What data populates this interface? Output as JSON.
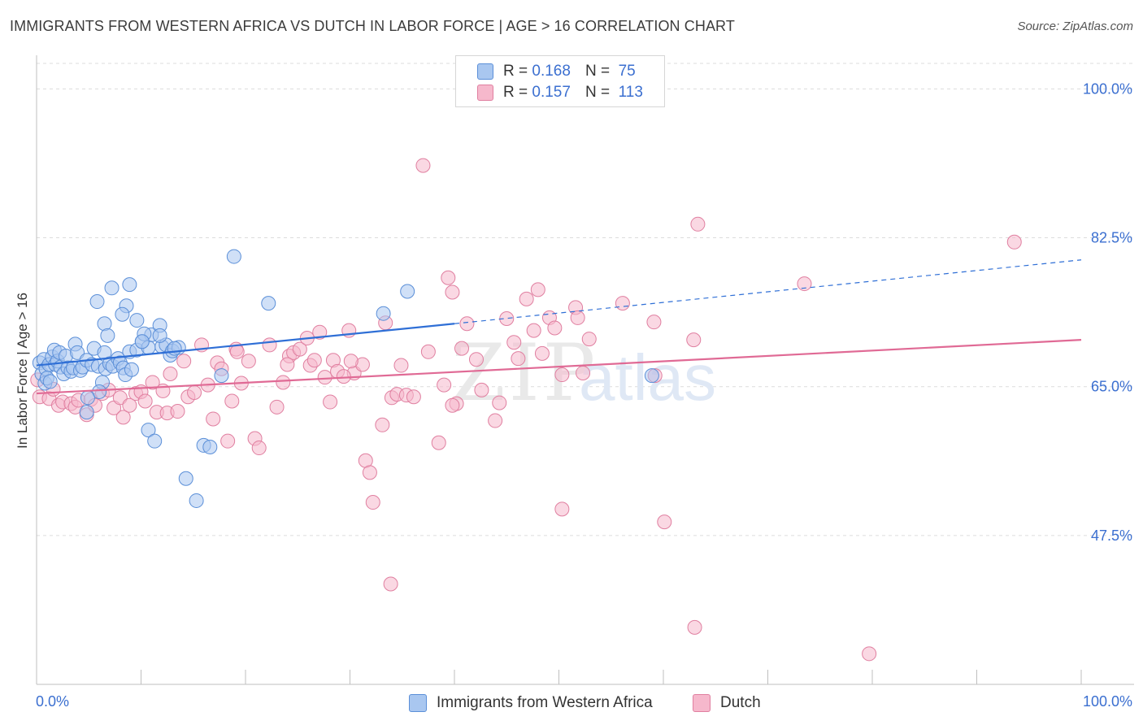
{
  "header": {
    "title": "IMMIGRANTS FROM WESTERN AFRICA VS DUTCH IN LABOR FORCE | AGE > 16 CORRELATION CHART",
    "source": "Source: ZipAtlas.com"
  },
  "legend": {
    "r_label": "R =",
    "n_label": "N =",
    "series": [
      {
        "name": "Immigrants from Western Africa",
        "r": "0.168",
        "n": "75",
        "color": "#a9c7f0",
        "edge": "#5b8fd8"
      },
      {
        "name": "Dutch",
        "r": "0.157",
        "n": "113",
        "color": "#f6b8cc",
        "edge": "#e07fa0"
      }
    ]
  },
  "watermark": {
    "zip": "ZIP",
    "atlas": "atlas"
  },
  "chart_data": {
    "type": "scatter",
    "title": "IMMIGRANTS FROM WESTERN AFRICA VS DUTCH IN LABOR FORCE | AGE > 16 CORRELATION CHART",
    "xlabel": "",
    "ylabel": "In Labor Force | Age > 16",
    "xlim": [
      0,
      100
    ],
    "ylim": [
      30,
      103
    ],
    "x_tick_labels": [
      "0.0%",
      "100.0%"
    ],
    "y_ticks": [
      47.5,
      65.0,
      82.5,
      100.0
    ],
    "y_tick_labels": [
      "47.5%",
      "65.0%",
      "82.5%",
      "100.0%"
    ],
    "grid": true,
    "trend_lines": [
      {
        "series": "Immigrants from Western Africa",
        "x0": 0,
        "y0": 67.5,
        "x1": 40,
        "y1": 72.4,
        "dashed_to_x": 100,
        "dashed_to_y": 79.9,
        "color": "#2f6fd6"
      },
      {
        "series": "Dutch",
        "x0": 0,
        "y0": 64.2,
        "x1": 100,
        "y1": 70.5,
        "color": "#e06a95"
      }
    ],
    "series": [
      {
        "name": "Immigrants from Western Africa",
        "color": "#a9c7f0",
        "edge": "#5b8fd8",
        "points": [
          [
            0.3,
            67.8
          ],
          [
            0.5,
            66.5
          ],
          [
            0.7,
            68.2
          ],
          [
            0.8,
            65.4
          ],
          [
            0.9,
            67.1
          ],
          [
            1.0,
            66.0
          ],
          [
            1.2,
            67.6
          ],
          [
            1.3,
            65.6
          ],
          [
            1.5,
            68.5
          ],
          [
            1.7,
            69.3
          ],
          [
            1.8,
            67.6
          ],
          [
            2.0,
            68.0
          ],
          [
            2.2,
            69.0
          ],
          [
            2.3,
            67.3
          ],
          [
            2.6,
            66.5
          ],
          [
            2.8,
            68.6
          ],
          [
            3.0,
            67.2
          ],
          [
            3.3,
            66.8
          ],
          [
            3.5,
            67.2
          ],
          [
            3.7,
            70.0
          ],
          [
            3.9,
            69.0
          ],
          [
            4.2,
            66.9
          ],
          [
            4.4,
            67.3
          ],
          [
            4.8,
            68.1
          ],
          [
            5.3,
            67.6
          ],
          [
            5.5,
            69.5
          ],
          [
            5.9,
            67.4
          ],
          [
            6.3,
            65.5
          ],
          [
            6.0,
            64.4
          ],
          [
            6.5,
            69.0
          ],
          [
            6.6,
            67.1
          ],
          [
            7.0,
            67.7
          ],
          [
            7.3,
            67.4
          ],
          [
            7.8,
            68.3
          ],
          [
            8.0,
            67.8
          ],
          [
            8.3,
            67.2
          ],
          [
            8.9,
            69.1
          ],
          [
            8.5,
            66.4
          ],
          [
            9.1,
            67.0
          ],
          [
            9.6,
            69.3
          ],
          [
            10.1,
            70.3
          ],
          [
            10.7,
            69.6
          ],
          [
            11.0,
            71.1
          ],
          [
            12.0,
            69.7
          ],
          [
            12.4,
            69.9
          ],
          [
            12.8,
            68.7
          ],
          [
            13.0,
            69.2
          ],
          [
            13.6,
            69.6
          ],
          [
            5.8,
            75.0
          ],
          [
            7.2,
            76.6
          ],
          [
            8.9,
            77.0
          ],
          [
            8.6,
            74.5
          ],
          [
            8.2,
            73.5
          ],
          [
            6.5,
            72.4
          ],
          [
            6.8,
            71.0
          ],
          [
            9.6,
            72.8
          ],
          [
            11.8,
            72.2
          ],
          [
            11.8,
            71.0
          ],
          [
            10.3,
            71.2
          ],
          [
            10.1,
            70.3
          ],
          [
            10.7,
            59.9
          ],
          [
            11.3,
            58.6
          ],
          [
            14.3,
            54.2
          ],
          [
            15.3,
            51.6
          ],
          [
            16.0,
            58.1
          ],
          [
            16.6,
            57.9
          ],
          [
            18.9,
            80.3
          ],
          [
            17.7,
            66.3
          ],
          [
            22.2,
            74.8
          ],
          [
            33.2,
            73.6
          ],
          [
            35.5,
            76.2
          ],
          [
            58.9,
            66.3
          ],
          [
            13.2,
            69.5
          ],
          [
            4.9,
            63.7
          ],
          [
            4.8,
            62.0
          ]
        ]
      },
      {
        "name": "Dutch",
        "color": "#f6b8cc",
        "edge": "#e07fa0",
        "points": [
          [
            0.1,
            65.8
          ],
          [
            0.3,
            63.8
          ],
          [
            1.2,
            63.6
          ],
          [
            1.6,
            64.7
          ],
          [
            2.1,
            62.8
          ],
          [
            2.5,
            63.2
          ],
          [
            3.3,
            63.0
          ],
          [
            3.7,
            62.6
          ],
          [
            4.0,
            63.4
          ],
          [
            4.8,
            61.7
          ],
          [
            5.2,
            63.5
          ],
          [
            5.6,
            62.8
          ],
          [
            6.3,
            64.2
          ],
          [
            6.9,
            64.6
          ],
          [
            7.4,
            62.5
          ],
          [
            8.0,
            63.7
          ],
          [
            8.3,
            61.4
          ],
          [
            8.9,
            62.8
          ],
          [
            9.5,
            64.2
          ],
          [
            10.0,
            64.4
          ],
          [
            10.4,
            63.3
          ],
          [
            11.1,
            65.5
          ],
          [
            11.5,
            62.0
          ],
          [
            12.1,
            64.5
          ],
          [
            12.5,
            61.9
          ],
          [
            12.8,
            66.5
          ],
          [
            13.5,
            62.1
          ],
          [
            14.1,
            68.0
          ],
          [
            14.5,
            63.8
          ],
          [
            15.1,
            64.3
          ],
          [
            15.8,
            69.9
          ],
          [
            16.4,
            65.2
          ],
          [
            16.9,
            61.2
          ],
          [
            17.3,
            67.8
          ],
          [
            17.7,
            67.1
          ],
          [
            18.3,
            58.6
          ],
          [
            18.7,
            63.3
          ],
          [
            19.1,
            69.4
          ],
          [
            19.6,
            65.4
          ],
          [
            20.3,
            68.0
          ],
          [
            20.9,
            58.9
          ],
          [
            21.3,
            57.8
          ],
          [
            22.3,
            69.9
          ],
          [
            23.0,
            62.6
          ],
          [
            23.6,
            65.5
          ],
          [
            24.2,
            68.6
          ],
          [
            24.6,
            69.0
          ],
          [
            25.2,
            69.4
          ],
          [
            25.9,
            70.7
          ],
          [
            26.2,
            67.5
          ],
          [
            27.1,
            71.4
          ],
          [
            27.6,
            66.1
          ],
          [
            28.1,
            63.2
          ],
          [
            28.4,
            68.1
          ],
          [
            28.8,
            66.8
          ],
          [
            29.9,
            71.6
          ],
          [
            30.4,
            66.6
          ],
          [
            31.2,
            67.6
          ],
          [
            31.5,
            56.3
          ],
          [
            31.9,
            54.9
          ],
          [
            32.2,
            51.4
          ],
          [
            33.1,
            60.5
          ],
          [
            34.0,
            63.7
          ],
          [
            34.5,
            64.1
          ],
          [
            34.9,
            67.5
          ],
          [
            35.4,
            64.0
          ],
          [
            36.1,
            63.8
          ],
          [
            37.0,
            91.0
          ],
          [
            38.5,
            58.4
          ],
          [
            39.0,
            65.2
          ],
          [
            39.4,
            77.8
          ],
          [
            39.8,
            76.1
          ],
          [
            40.2,
            63.0
          ],
          [
            40.7,
            69.5
          ],
          [
            41.2,
            72.4
          ],
          [
            42.1,
            68.2
          ],
          [
            42.6,
            64.6
          ],
          [
            43.9,
            61.0
          ],
          [
            44.3,
            63.1
          ],
          [
            45.0,
            73.0
          ],
          [
            45.7,
            70.2
          ],
          [
            46.1,
            68.3
          ],
          [
            46.9,
            75.3
          ],
          [
            47.6,
            71.6
          ],
          [
            48.0,
            76.4
          ],
          [
            48.4,
            68.9
          ],
          [
            49.1,
            73.1
          ],
          [
            49.6,
            71.9
          ],
          [
            50.3,
            66.4
          ],
          [
            51.6,
            74.3
          ],
          [
            51.8,
            73.1
          ],
          [
            52.3,
            66.6
          ],
          [
            52.9,
            70.6
          ],
          [
            56.1,
            74.8
          ],
          [
            59.1,
            72.6
          ],
          [
            59.2,
            66.3
          ],
          [
            60.1,
            49.1
          ],
          [
            62.9,
            70.5
          ],
          [
            63.3,
            84.1
          ],
          [
            73.5,
            77.1
          ],
          [
            93.6,
            82.0
          ],
          [
            33.9,
            41.8
          ],
          [
            50.3,
            50.6
          ],
          [
            63.0,
            36.7
          ],
          [
            79.7,
            33.6
          ],
          [
            39.8,
            62.8
          ],
          [
            30.1,
            68.0
          ],
          [
            19.2,
            69.1
          ],
          [
            24.0,
            67.6
          ],
          [
            33.4,
            72.5
          ],
          [
            37.5,
            69.1
          ],
          [
            29.4,
            66.2
          ],
          [
            26.6,
            68.1
          ]
        ]
      }
    ]
  }
}
